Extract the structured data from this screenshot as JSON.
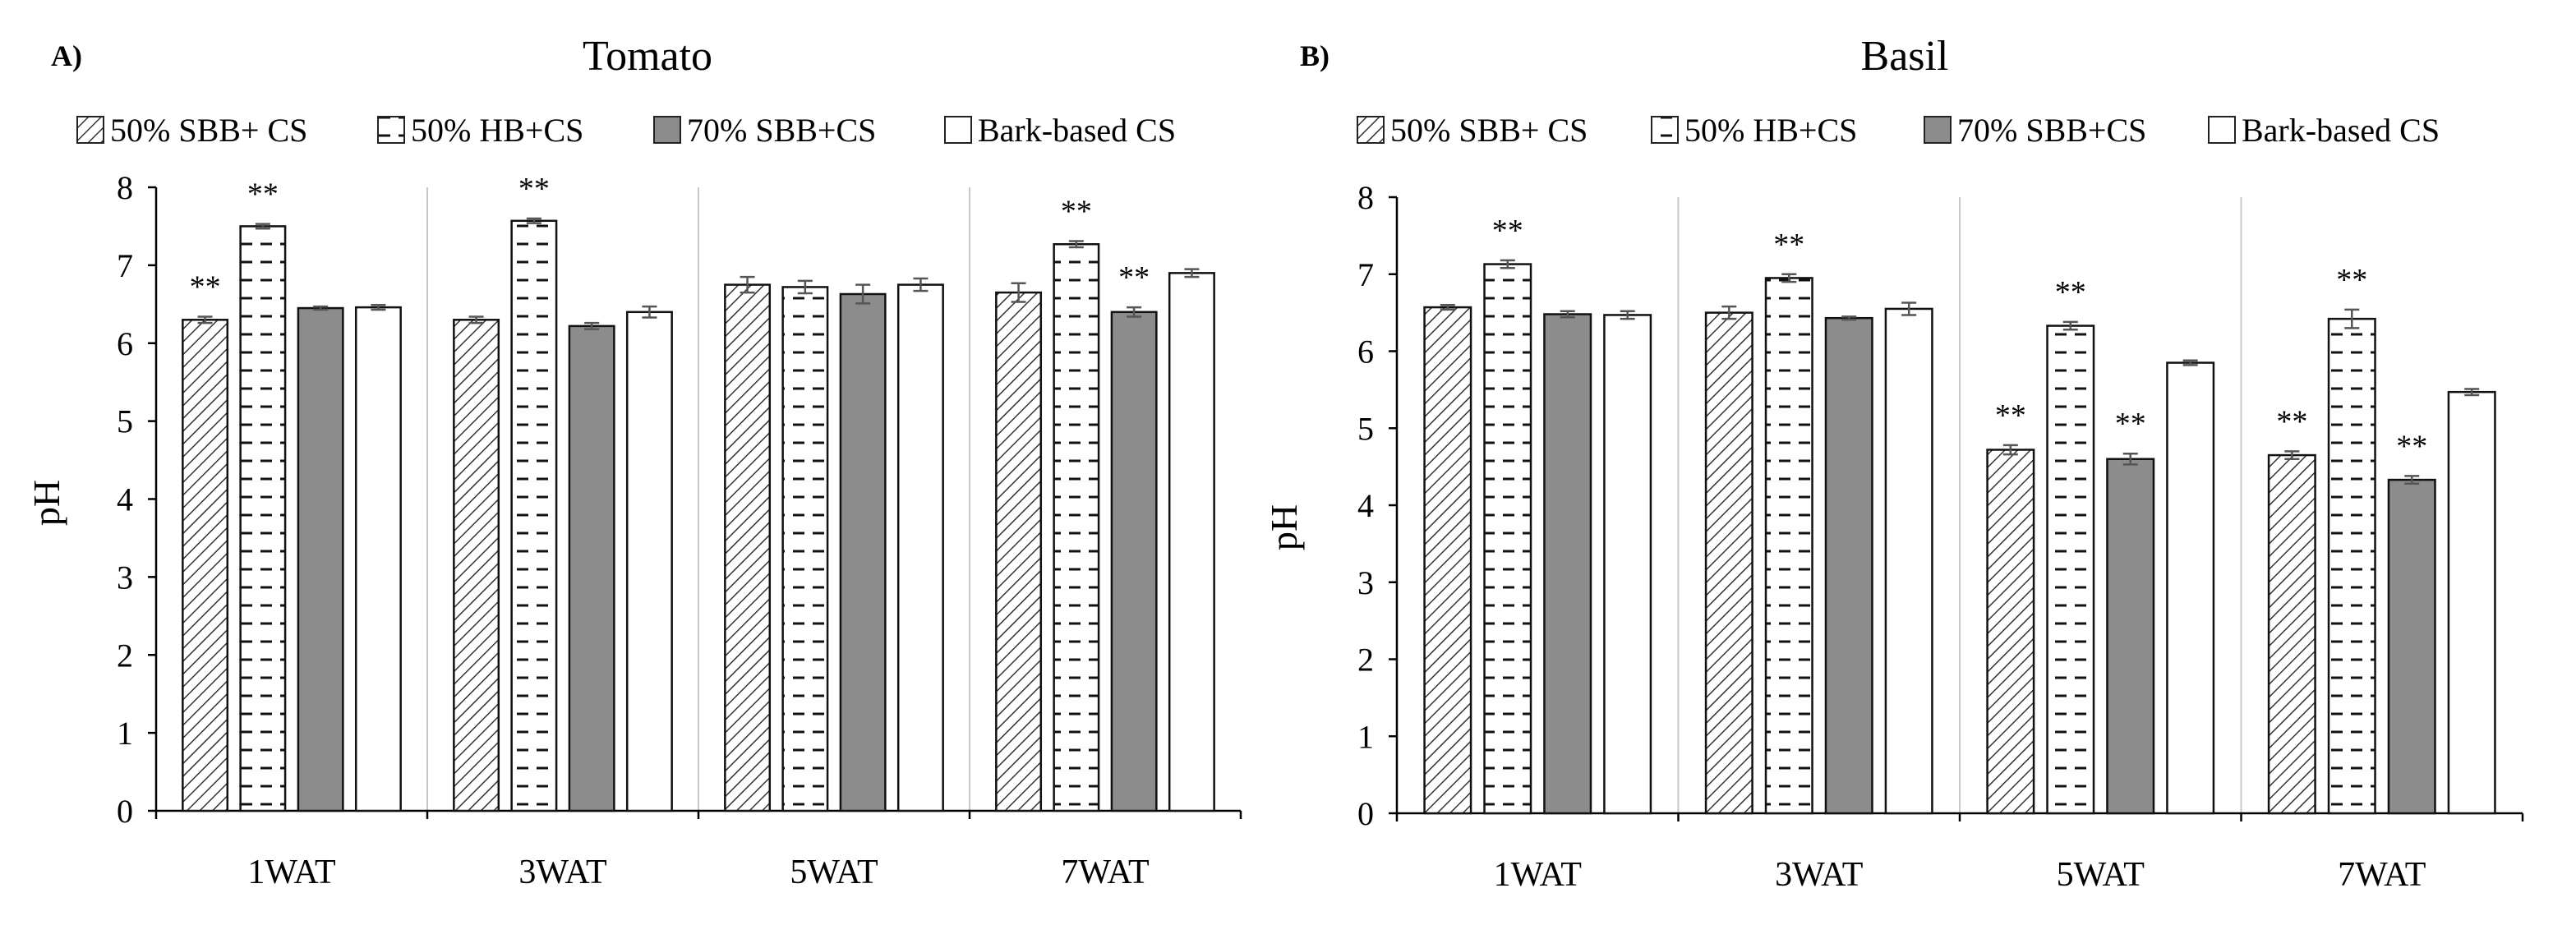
{
  "chart_data": [
    {
      "type": "bar",
      "panel_label": "A)",
      "title": "Tomato",
      "xlabel": "",
      "ylabel": "pH",
      "ylim": [
        0,
        8
      ],
      "yticks": [
        "0",
        "1",
        "2",
        "3",
        "4",
        "5",
        "6",
        "7",
        "8"
      ],
      "categories": [
        "1WAT",
        "3WAT",
        "5WAT",
        "7WAT"
      ],
      "legend_position": "top",
      "series": [
        {
          "name": "50% SBB+ CS",
          "pattern": "diagonal",
          "values": [
            6.3,
            6.3,
            6.75,
            6.65
          ],
          "errors": [
            0.04,
            0.04,
            0.1,
            0.12
          ],
          "significance": [
            "**",
            "",
            "",
            ""
          ]
        },
        {
          "name": "50% HB+CS",
          "pattern": "dashes",
          "values": [
            7.5,
            7.57,
            6.72,
            7.27
          ],
          "errors": [
            0.03,
            0.03,
            0.08,
            0.04
          ],
          "significance": [
            "**",
            "**",
            "",
            "**"
          ]
        },
        {
          "name": "70% SBB+CS",
          "pattern": "gray",
          "values": [
            6.45,
            6.22,
            6.63,
            6.4
          ],
          "errors": [
            0.02,
            0.04,
            0.12,
            0.06
          ],
          "significance": [
            "",
            "",
            "",
            "**"
          ]
        },
        {
          "name": "Bark-based CS",
          "pattern": "white",
          "values": [
            6.46,
            6.4,
            6.75,
            6.9
          ],
          "errors": [
            0.03,
            0.07,
            0.08,
            0.05
          ],
          "significance": [
            "",
            "",
            "",
            ""
          ]
        }
      ]
    },
    {
      "type": "bar",
      "panel_label": "B)",
      "title": "Basil",
      "xlabel": "",
      "ylabel": "pH",
      "ylim": [
        0,
        8
      ],
      "yticks": [
        "0",
        "1",
        "2",
        "3",
        "4",
        "5",
        "6",
        "7",
        "8"
      ],
      "categories": [
        "1WAT",
        "3WAT",
        "5WAT",
        "7WAT"
      ],
      "legend_position": "top",
      "series": [
        {
          "name": "50% SBB+ CS",
          "pattern": "diagonal",
          "values": [
            6.57,
            6.5,
            4.72,
            4.65
          ],
          "errors": [
            0.03,
            0.08,
            0.06,
            0.05
          ],
          "significance": [
            "",
            "",
            "**",
            "**"
          ]
        },
        {
          "name": "50% HB+CS",
          "pattern": "dashes",
          "values": [
            7.13,
            6.95,
            6.33,
            6.42
          ],
          "errors": [
            0.05,
            0.05,
            0.05,
            0.12
          ],
          "significance": [
            "**",
            "**",
            "**",
            "**"
          ]
        },
        {
          "name": "70% SBB+CS",
          "pattern": "gray",
          "values": [
            6.48,
            6.43,
            4.6,
            4.33
          ],
          "errors": [
            0.04,
            0.02,
            0.07,
            0.05
          ],
          "significance": [
            "",
            "",
            "**",
            "**"
          ]
        },
        {
          "name": "Bark-based CS",
          "pattern": "white",
          "values": [
            6.47,
            6.55,
            5.85,
            5.47
          ],
          "errors": [
            0.05,
            0.08,
            0.03,
            0.04
          ],
          "significance": [
            "",
            "",
            "",
            ""
          ]
        }
      ]
    }
  ]
}
